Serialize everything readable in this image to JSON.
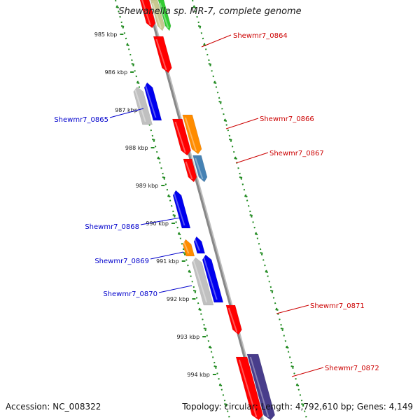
{
  "title": "Shewanella sp. MR-7, complete genome",
  "footer": {
    "accession": "Accession: NC_008322",
    "summary": "Topology: circular; Length: 4,792,610 bp; Genes: 4,149"
  },
  "colors": {
    "forward_label": "#cc0000",
    "reverse_label": "#0000cc",
    "backbone": "#888888",
    "ticks": "#228b22"
  },
  "ticks": [
    "985 kbp",
    "986 kbp",
    "987 kbp",
    "988 kbp",
    "989 kbp",
    "990 kbp",
    "991 kbp",
    "992 kbp",
    "993 kbp",
    "994 kbp"
  ],
  "genes": [
    {
      "label": "Shewmr7_0864",
      "strand": "forward"
    },
    {
      "label": "Shewmr7_0865",
      "strand": "reverse"
    },
    {
      "label": "Shewmr7_0866",
      "strand": "forward"
    },
    {
      "label": "Shewmr7_0867",
      "strand": "forward"
    },
    {
      "label": "Shewmr7_0868",
      "strand": "reverse"
    },
    {
      "label": "Shewmr7_0869",
      "strand": "reverse"
    },
    {
      "label": "Shewmr7_0870",
      "strand": "reverse"
    },
    {
      "label": "Shewmr7_0871",
      "strand": "forward"
    },
    {
      "label": "Shewmr7_0872",
      "strand": "forward"
    }
  ]
}
